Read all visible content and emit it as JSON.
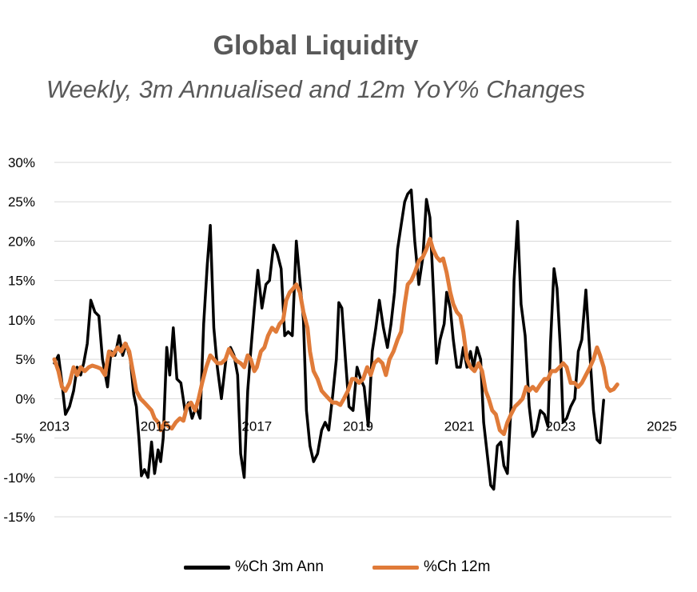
{
  "chart_data": {
    "type": "line",
    "title": "Global Liquidity",
    "subtitle": "Weekly, 3m Annualised and 12m YoY% Changes",
    "xlabel": "",
    "ylabel": "",
    "ylim": [
      -15,
      30
    ],
    "xlim": [
      2013,
      2025
    ],
    "x_ticks": [
      "2013",
      "2015",
      "2017",
      "2019",
      "2021",
      "2023",
      "2025"
    ],
    "y_ticks": [
      "30%",
      "25%",
      "20%",
      "15%",
      "10%",
      "5%",
      "0%",
      "-5%",
      "-10%",
      "-15%"
    ],
    "grid": true,
    "legend_position": "bottom",
    "series": [
      {
        "name": "%Ch 3m Ann",
        "color": "#000000",
        "points": [
          [
            2013.0,
            4.5
          ],
          [
            2013.08,
            5.5
          ],
          [
            2013.15,
            2
          ],
          [
            2013.22,
            -2
          ],
          [
            2013.3,
            -1
          ],
          [
            2013.38,
            1
          ],
          [
            2013.45,
            4
          ],
          [
            2013.52,
            3
          ],
          [
            2013.58,
            4.5
          ],
          [
            2013.65,
            7
          ],
          [
            2013.72,
            12.5
          ],
          [
            2013.8,
            11
          ],
          [
            2013.88,
            10.5
          ],
          [
            2013.95,
            5
          ],
          [
            2014.05,
            1.5
          ],
          [
            2014.12,
            6
          ],
          [
            2014.2,
            5.5
          ],
          [
            2014.28,
            8
          ],
          [
            2014.35,
            5.5
          ],
          [
            2014.42,
            7
          ],
          [
            2014.5,
            5
          ],
          [
            2014.57,
            0.5
          ],
          [
            2014.62,
            -1
          ],
          [
            2014.67,
            -5
          ],
          [
            2014.72,
            -9.8
          ],
          [
            2014.78,
            -9
          ],
          [
            2014.85,
            -10
          ],
          [
            2014.92,
            -5.5
          ],
          [
            2014.98,
            -9.5
          ],
          [
            2015.05,
            -6.5
          ],
          [
            2015.1,
            -8
          ],
          [
            2015.15,
            -5
          ],
          [
            2015.22,
            6.5
          ],
          [
            2015.28,
            3
          ],
          [
            2015.35,
            9
          ],
          [
            2015.42,
            2.5
          ],
          [
            2015.5,
            2
          ],
          [
            2015.58,
            -1.5
          ],
          [
            2015.65,
            -0.5
          ],
          [
            2015.72,
            -2.5
          ],
          [
            2015.8,
            -1
          ],
          [
            2015.88,
            -2.5
          ],
          [
            2015.95,
            9.5
          ],
          [
            2016.02,
            17
          ],
          [
            2016.08,
            22
          ],
          [
            2016.15,
            9
          ],
          [
            2016.22,
            4
          ],
          [
            2016.3,
            0
          ],
          [
            2016.4,
            5.5
          ],
          [
            2016.48,
            6.5
          ],
          [
            2016.55,
            5.5
          ],
          [
            2016.62,
            3
          ],
          [
            2016.68,
            -7
          ],
          [
            2016.75,
            -10
          ],
          [
            2016.82,
            1
          ],
          [
            2016.88,
            6
          ],
          [
            2016.95,
            11.5
          ],
          [
            2017.02,
            16.3
          ],
          [
            2017.1,
            11.5
          ],
          [
            2017.18,
            14.5
          ],
          [
            2017.25,
            15
          ],
          [
            2017.33,
            19.5
          ],
          [
            2017.4,
            18.5
          ],
          [
            2017.48,
            16.5
          ],
          [
            2017.55,
            8
          ],
          [
            2017.62,
            8.5
          ],
          [
            2017.7,
            8
          ],
          [
            2017.78,
            20
          ],
          [
            2017.85,
            15
          ],
          [
            2017.92,
            10
          ],
          [
            2017.98,
            -1.5
          ],
          [
            2018.05,
            -6
          ],
          [
            2018.12,
            -8
          ],
          [
            2018.2,
            -7
          ],
          [
            2018.28,
            -4
          ],
          [
            2018.35,
            -3
          ],
          [
            2018.42,
            -4
          ],
          [
            2018.5,
            0.5
          ],
          [
            2018.57,
            5
          ],
          [
            2018.62,
            12.2
          ],
          [
            2018.68,
            11.5
          ],
          [
            2018.75,
            5
          ],
          [
            2018.82,
            -1
          ],
          [
            2018.9,
            -1.5
          ],
          [
            2018.98,
            4
          ],
          [
            2019.05,
            2.5
          ],
          [
            2019.12,
            1.5
          ],
          [
            2019.2,
            -3.5
          ],
          [
            2019.28,
            6
          ],
          [
            2019.35,
            9
          ],
          [
            2019.42,
            12.5
          ],
          [
            2019.5,
            9
          ],
          [
            2019.58,
            6.5
          ],
          [
            2019.65,
            9.5
          ],
          [
            2019.72,
            13.5
          ],
          [
            2019.78,
            19
          ],
          [
            2019.85,
            22
          ],
          [
            2019.92,
            25
          ],
          [
            2019.98,
            26
          ],
          [
            2020.05,
            26.5
          ],
          [
            2020.12,
            20
          ],
          [
            2020.2,
            14.5
          ],
          [
            2020.28,
            18
          ],
          [
            2020.35,
            25.3
          ],
          [
            2020.42,
            23
          ],
          [
            2020.5,
            12
          ],
          [
            2020.55,
            4.5
          ],
          [
            2020.62,
            7.5
          ],
          [
            2020.7,
            9.5
          ],
          [
            2020.75,
            13.5
          ],
          [
            2020.82,
            11.5
          ],
          [
            2020.88,
            7.5
          ],
          [
            2020.95,
            4
          ],
          [
            2021.02,
            4
          ],
          [
            2021.08,
            6.5
          ],
          [
            2021.15,
            4
          ],
          [
            2021.22,
            6
          ],
          [
            2021.28,
            4
          ],
          [
            2021.35,
            6.5
          ],
          [
            2021.42,
            5
          ],
          [
            2021.48,
            -3
          ],
          [
            2021.55,
            -7
          ],
          [
            2021.62,
            -11
          ],
          [
            2021.68,
            -11.5
          ],
          [
            2021.75,
            -6
          ],
          [
            2021.82,
            -5.5
          ],
          [
            2021.88,
            -8.5
          ],
          [
            2021.95,
            -9.5
          ],
          [
            2022.02,
            -1
          ],
          [
            2022.08,
            15
          ],
          [
            2022.15,
            22.5
          ],
          [
            2022.22,
            12
          ],
          [
            2022.3,
            8
          ],
          [
            2022.38,
            -1
          ],
          [
            2022.45,
            -4.8
          ],
          [
            2022.52,
            -4
          ],
          [
            2022.6,
            -1.5
          ],
          [
            2022.68,
            -2
          ],
          [
            2022.75,
            -3.5
          ],
          [
            2022.8,
            7
          ],
          [
            2022.87,
            16.5
          ],
          [
            2022.93,
            14
          ],
          [
            2023.0,
            6
          ],
          [
            2023.05,
            -3
          ],
          [
            2023.12,
            -2.5
          ],
          [
            2023.2,
            -1
          ],
          [
            2023.28,
            0
          ],
          [
            2023.35,
            6
          ],
          [
            2023.42,
            7.5
          ],
          [
            2023.5,
            13.8
          ],
          [
            2023.58,
            5.5
          ],
          [
            2023.65,
            -1.5
          ],
          [
            2023.72,
            -5.2
          ],
          [
            2023.78,
            -5.6
          ],
          [
            2023.85,
            -0.2
          ]
        ]
      },
      {
        "name": "%Ch 12m",
        "color": "#E07B39",
        "points": [
          [
            2013.0,
            5
          ],
          [
            2013.08,
            3.5
          ],
          [
            2013.15,
            1.5
          ],
          [
            2013.22,
            1
          ],
          [
            2013.3,
            2
          ],
          [
            2013.38,
            4
          ],
          [
            2013.45,
            3
          ],
          [
            2013.52,
            4
          ],
          [
            2013.6,
            3.5
          ],
          [
            2013.68,
            4
          ],
          [
            2013.75,
            4.2
          ],
          [
            2013.85,
            4
          ],
          [
            2013.92,
            3.8
          ],
          [
            2014.0,
            3
          ],
          [
            2014.08,
            6
          ],
          [
            2014.15,
            5.5
          ],
          [
            2014.25,
            6.5
          ],
          [
            2014.32,
            6
          ],
          [
            2014.4,
            7
          ],
          [
            2014.48,
            6
          ],
          [
            2014.55,
            3.5
          ],
          [
            2014.62,
            1
          ],
          [
            2014.7,
            0
          ],
          [
            2014.78,
            -0.5
          ],
          [
            2014.85,
            -1
          ],
          [
            2014.92,
            -1.5
          ],
          [
            2014.98,
            -2.5
          ],
          [
            2015.05,
            -3
          ],
          [
            2015.1,
            -4
          ],
          [
            2015.18,
            -3
          ],
          [
            2015.25,
            -3.5
          ],
          [
            2015.32,
            -3.8
          ],
          [
            2015.4,
            -3
          ],
          [
            2015.48,
            -2.5
          ],
          [
            2015.55,
            -2.8
          ],
          [
            2015.62,
            -1
          ],
          [
            2015.7,
            -0.5
          ],
          [
            2015.78,
            -1.5
          ],
          [
            2015.85,
            0
          ],
          [
            2015.92,
            2
          ],
          [
            2016.0,
            4
          ],
          [
            2016.08,
            5.5
          ],
          [
            2016.15,
            5
          ],
          [
            2016.22,
            4.5
          ],
          [
            2016.3,
            4.5
          ],
          [
            2016.38,
            5
          ],
          [
            2016.45,
            6.3
          ],
          [
            2016.52,
            5.5
          ],
          [
            2016.6,
            4.8
          ],
          [
            2016.68,
            4.5
          ],
          [
            2016.75,
            4
          ],
          [
            2016.82,
            5.5
          ],
          [
            2016.88,
            5
          ],
          [
            2016.95,
            3.5
          ],
          [
            2017.0,
            4
          ],
          [
            2017.08,
            6
          ],
          [
            2017.15,
            6.5
          ],
          [
            2017.22,
            8
          ],
          [
            2017.3,
            9
          ],
          [
            2017.38,
            8.5
          ],
          [
            2017.45,
            9.5
          ],
          [
            2017.52,
            10
          ],
          [
            2017.58,
            12.5
          ],
          [
            2017.65,
            13.5
          ],
          [
            2017.72,
            14
          ],
          [
            2017.78,
            14.5
          ],
          [
            2017.85,
            13.5
          ],
          [
            2017.92,
            11
          ],
          [
            2018.0,
            9
          ],
          [
            2018.05,
            6
          ],
          [
            2018.12,
            3.5
          ],
          [
            2018.2,
            2.5
          ],
          [
            2018.28,
            1
          ],
          [
            2018.35,
            0.5
          ],
          [
            2018.42,
            0
          ],
          [
            2018.5,
            -0.5
          ],
          [
            2018.57,
            -0.5
          ],
          [
            2018.65,
            -0.8
          ],
          [
            2018.72,
            0
          ],
          [
            2018.8,
            1
          ],
          [
            2018.88,
            2.5
          ],
          [
            2018.95,
            2.5
          ],
          [
            2019.02,
            2
          ],
          [
            2019.1,
            2.5
          ],
          [
            2019.18,
            4
          ],
          [
            2019.25,
            3
          ],
          [
            2019.32,
            4.5
          ],
          [
            2019.4,
            5
          ],
          [
            2019.48,
            4.5
          ],
          [
            2019.55,
            3
          ],
          [
            2019.62,
            5
          ],
          [
            2019.7,
            6
          ],
          [
            2019.78,
            7.5
          ],
          [
            2019.85,
            8.5
          ],
          [
            2019.92,
            12
          ],
          [
            2019.98,
            14.5
          ],
          [
            2020.05,
            15
          ],
          [
            2020.12,
            16
          ],
          [
            2020.2,
            17.5
          ],
          [
            2020.28,
            18
          ],
          [
            2020.35,
            19
          ],
          [
            2020.42,
            20.3
          ],
          [
            2020.48,
            19
          ],
          [
            2020.55,
            18
          ],
          [
            2020.62,
            17.5
          ],
          [
            2020.68,
            17.8
          ],
          [
            2020.75,
            16
          ],
          [
            2020.82,
            13.5
          ],
          [
            2020.88,
            12
          ],
          [
            2020.95,
            11
          ],
          [
            2021.02,
            10.5
          ],
          [
            2021.08,
            8.5
          ],
          [
            2021.15,
            5
          ],
          [
            2021.22,
            4
          ],
          [
            2021.3,
            3.5
          ],
          [
            2021.38,
            4.5
          ],
          [
            2021.45,
            3.5
          ],
          [
            2021.52,
            1
          ],
          [
            2021.58,
            0
          ],
          [
            2021.65,
            -1.5
          ],
          [
            2021.72,
            -2
          ],
          [
            2021.8,
            -4
          ],
          [
            2021.88,
            -4.5
          ],
          [
            2021.95,
            -3
          ],
          [
            2022.02,
            -2
          ],
          [
            2022.1,
            -1
          ],
          [
            2022.18,
            -0.5
          ],
          [
            2022.25,
            0
          ],
          [
            2022.32,
            1.5
          ],
          [
            2022.38,
            1
          ],
          [
            2022.45,
            1.5
          ],
          [
            2022.52,
            1
          ],
          [
            2022.6,
            1.8
          ],
          [
            2022.68,
            2.5
          ],
          [
            2022.75,
            2.5
          ],
          [
            2022.82,
            3.5
          ],
          [
            2022.9,
            3.5
          ],
          [
            2022.98,
            4
          ],
          [
            2023.05,
            4.5
          ],
          [
            2023.12,
            4
          ],
          [
            2023.2,
            2
          ],
          [
            2023.28,
            2
          ],
          [
            2023.35,
            1.5
          ],
          [
            2023.42,
            2
          ],
          [
            2023.5,
            3
          ],
          [
            2023.58,
            4
          ],
          [
            2023.65,
            5
          ],
          [
            2023.72,
            6.5
          ],
          [
            2023.78,
            5.5
          ],
          [
            2023.85,
            4
          ],
          [
            2023.92,
            1.5
          ],
          [
            2023.98,
            1
          ],
          [
            2024.05,
            1.2
          ],
          [
            2024.12,
            1.8
          ]
        ]
      }
    ]
  }
}
